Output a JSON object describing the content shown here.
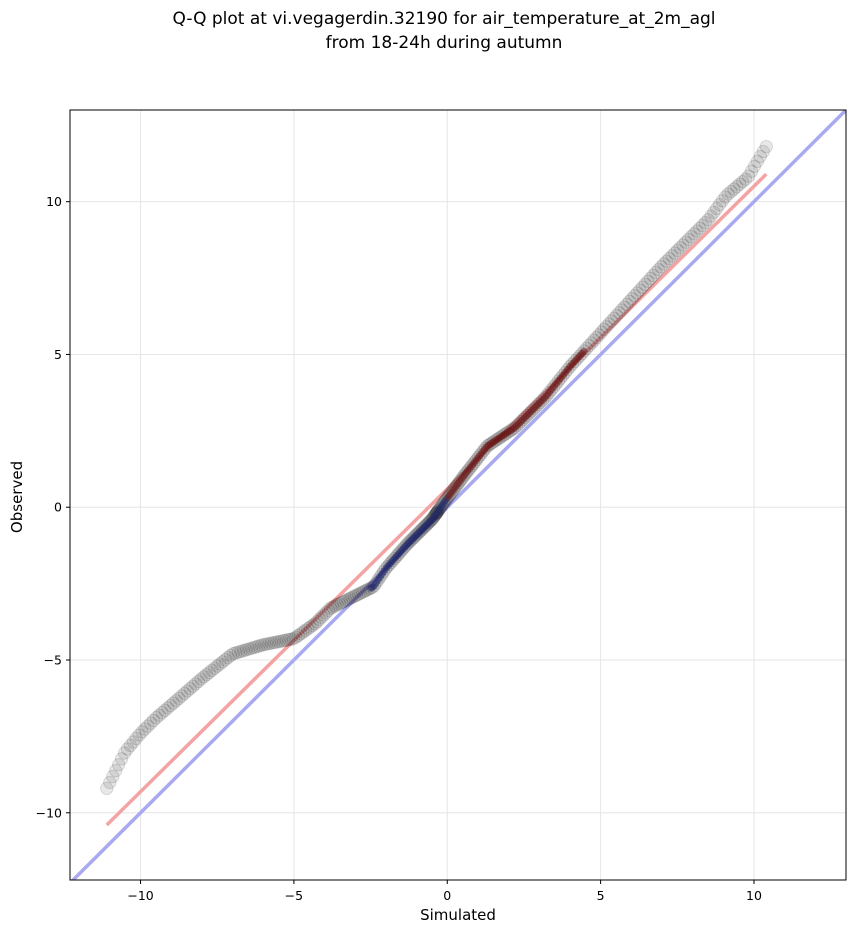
{
  "chart_data": {
    "type": "scatter",
    "title_line1": "Q-Q plot at vi.vegagerdin.32190 for air_temperature_at_2m_agl",
    "title_line2": "from 18-24h during autumn",
    "xlabel": "Simulated",
    "ylabel": "Observed",
    "xlim": [
      -12.3,
      13.0
    ],
    "ylim": [
      -12.2,
      13.0
    ],
    "xticks": [
      -10,
      -5,
      0,
      5,
      10
    ],
    "yticks": [
      -10,
      -5,
      0,
      5,
      10
    ],
    "xtick_labels": [
      "−10",
      "−5",
      "0",
      "5",
      "10"
    ],
    "ytick_labels": [
      "−10",
      "−5",
      "0",
      "5",
      "10"
    ],
    "grid": true,
    "colors": {
      "points": "#000000",
      "fit_line": "#f4a3a3",
      "identity_line": "#a9a9f2",
      "central_low": "#1a2266",
      "central_high": "#6b1010"
    },
    "fit_line": {
      "x": [
        -11.1,
        10.4
      ],
      "y": [
        -10.4,
        10.9
      ]
    },
    "identity_line": {
      "x": [
        -12.3,
        13.0
      ],
      "y": [
        -12.3,
        13.0
      ]
    },
    "anchors": [
      [
        -11.1,
        -9.2
      ],
      [
        -10.85,
        -8.7
      ],
      [
        -10.5,
        -8.0
      ],
      [
        -10.0,
        -7.4
      ],
      [
        -9.5,
        -6.9
      ],
      [
        -8.8,
        -6.3
      ],
      [
        -8.0,
        -5.6
      ],
      [
        -7.0,
        -4.8
      ],
      [
        -6.0,
        -4.5
      ],
      [
        -5.0,
        -4.3
      ],
      [
        -4.3,
        -3.8
      ],
      [
        -3.8,
        -3.3
      ],
      [
        -3.0,
        -2.9
      ],
      [
        -2.4,
        -2.6
      ],
      [
        -2.0,
        -2.0
      ],
      [
        -1.3,
        -1.2
      ],
      [
        -0.5,
        -0.4
      ],
      [
        0.0,
        0.3
      ],
      [
        0.6,
        1.1
      ],
      [
        1.3,
        2.0
      ],
      [
        2.2,
        2.6
      ],
      [
        3.2,
        3.6
      ],
      [
        4.0,
        4.6
      ],
      [
        5.0,
        5.7
      ],
      [
        6.0,
        6.8
      ],
      [
        7.0,
        7.9
      ],
      [
        7.8,
        8.7
      ],
      [
        8.5,
        9.4
      ],
      [
        9.1,
        10.2
      ],
      [
        9.8,
        10.8
      ],
      [
        10.4,
        11.8
      ]
    ],
    "num_points": 300,
    "central_range": [
      -2.5,
      4.5
    ]
  }
}
